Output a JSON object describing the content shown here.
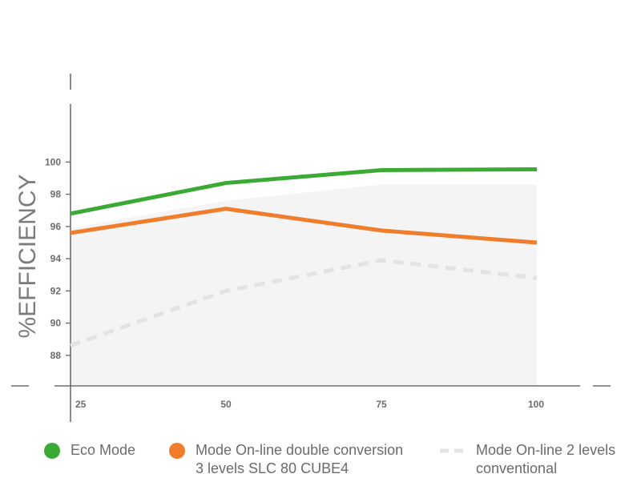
{
  "chart_data": {
    "type": "line",
    "ylabel": "%EFFICIENCY",
    "xlabel": "",
    "x": [
      25,
      50,
      75,
      100
    ],
    "x_ticks": [
      "25",
      "50",
      "75",
      "100"
    ],
    "y_ticks": [
      "88",
      "90",
      "92",
      "94",
      "96",
      "98",
      "100"
    ],
    "ylim": [
      86.1,
      103.6
    ],
    "grid": false,
    "series": [
      {
        "name": "Eco Mode",
        "values": [
          96.8,
          98.7,
          99.5,
          99.55
        ],
        "color": "#3aaa35",
        "style": "solid"
      },
      {
        "name": "Mode On-line double conversion\n3 levels SLC 80 CUBE4",
        "values": [
          95.6,
          97.1,
          95.75,
          95.0
        ],
        "color": "#f07d2b",
        "style": "solid"
      },
      {
        "name": "Mode On-line 2 levels\nconventional",
        "values": [
          88.6,
          92.0,
          93.9,
          92.8
        ],
        "color": "#e3e3e3",
        "style": "dashed"
      }
    ],
    "area_band": {
      "values": [
        95.9,
        97.6,
        98.6,
        98.6
      ],
      "color": "#f4f4f4"
    },
    "legend_position": "bottom"
  }
}
